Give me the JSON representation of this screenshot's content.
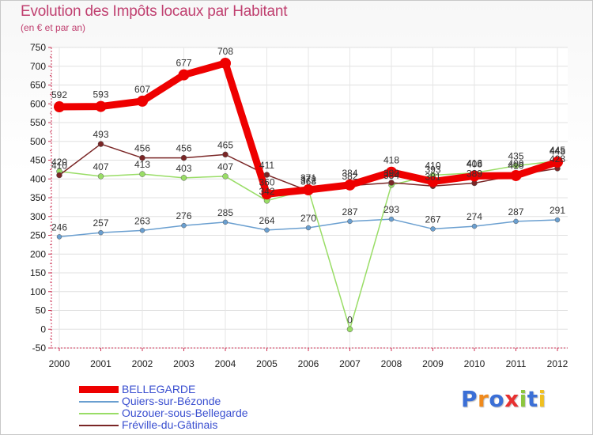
{
  "chart_data": {
    "type": "line",
    "title": "Evolution des Impôts locaux par Habitant",
    "subtitle": "(en € et par an)",
    "xlabel": "",
    "ylabel": "",
    "ylim": [
      -50,
      750
    ],
    "yticks": [
      -50,
      0,
      50,
      100,
      150,
      200,
      250,
      300,
      350,
      400,
      450,
      500,
      550,
      600,
      650,
      700,
      750
    ],
    "categories": [
      "2000",
      "2001",
      "2002",
      "2003",
      "2004",
      "2005",
      "2006",
      "2007",
      "2008",
      "2009",
      "2010",
      "2011",
      "2012"
    ],
    "series": [
      {
        "name": "BELLEGARDE",
        "color": "#ee0000",
        "values": [
          592,
          593,
          607,
          677,
          708,
          360,
          371,
          384,
          418,
          393,
          408,
          409,
          445
        ]
      },
      {
        "name": "Quiers-sur-Bézonde",
        "color": "#6a9fd0",
        "values": [
          246,
          257,
          263,
          276,
          285,
          264,
          270,
          287,
          293,
          267,
          274,
          287,
          291
        ]
      },
      {
        "name": "Ouzouer-sous-Bellegarde",
        "color": "#99dd66",
        "values": [
          420,
          407,
          413,
          403,
          407,
          342,
          372,
          0,
          384,
          410,
          416,
          435,
          448
        ]
      },
      {
        "name": "Fréville-du-Gâtinais",
        "color": "#7a2626",
        "values": [
          410,
          493,
          456,
          456,
          465,
          411,
          368,
          382,
          390,
          381,
          389,
          410,
          428
        ]
      }
    ],
    "legend_position": "bottom-left"
  },
  "logo": {
    "letters": [
      "P",
      "r",
      "o",
      "x",
      "i",
      "t",
      "i"
    ],
    "colors": [
      "#3b6fd6",
      "#f08a1c",
      "#3b6fd6",
      "#e83030",
      "#8cc63f",
      "#3b6fd6",
      "#f0c020"
    ]
  }
}
